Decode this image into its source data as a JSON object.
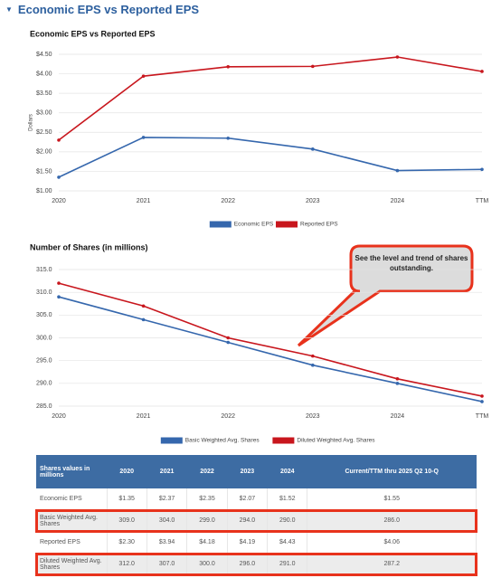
{
  "header": {
    "title": "Economic EPS vs Reported EPS"
  },
  "chart_data": [
    {
      "type": "line",
      "title": "Economic EPS vs Reported EPS",
      "y_label": "Dollars",
      "categories": [
        "2020",
        "2021",
        "2022",
        "2023",
        "2024",
        "TTM"
      ],
      "series": [
        {
          "name": "Economic EPS",
          "color": "#3567ad",
          "values": [
            1.35,
            2.37,
            2.35,
            2.07,
            1.52,
            1.55
          ]
        },
        {
          "name": "Reported EPS",
          "color": "#c8161d",
          "values": [
            2.3,
            3.94,
            4.18,
            4.19,
            4.43,
            4.06
          ]
        }
      ],
      "ylim": [
        1,
        4.5
      ],
      "yticks": [
        {
          "value": 1,
          "label": "$1.00"
        },
        {
          "value": 1.5,
          "label": "$1.50"
        },
        {
          "value": 2,
          "label": "$2.00"
        },
        {
          "value": 2.5,
          "label": "$2.50"
        },
        {
          "value": 3,
          "label": "$3.00"
        },
        {
          "value": 3.5,
          "label": "$3.50"
        },
        {
          "value": 4,
          "label": "$4.00"
        },
        {
          "value": 4.5,
          "label": "$4.50"
        }
      ],
      "grid": true
    },
    {
      "type": "line",
      "title": "Number of Shares (in millions)",
      "annotation": "See the level and trend of shares outstanding.",
      "categories": [
        "2020",
        "2021",
        "2022",
        "2023",
        "2024",
        "TTM"
      ],
      "series": [
        {
          "name": "Basic Weighted Avg. Shares",
          "color": "#3567ad",
          "values": [
            309.0,
            304.0,
            299.0,
            294.0,
            290.0,
            286.0
          ]
        },
        {
          "name": "Diluted Weighted Avg. Shares",
          "color": "#c8161d",
          "values": [
            312.0,
            307.0,
            300.0,
            296.0,
            291.0,
            287.2
          ]
        }
      ],
      "ylim": [
        285,
        315
      ],
      "yticks": [
        {
          "value": 285,
          "label": "285.0"
        },
        {
          "value": 290,
          "label": "290.0"
        },
        {
          "value": 295,
          "label": "295.0"
        },
        {
          "value": 300,
          "label": "300.0"
        },
        {
          "value": 305,
          "label": "305.0"
        },
        {
          "value": 310,
          "label": "310.0"
        },
        {
          "value": 315,
          "label": "315.0"
        }
      ],
      "grid": true
    }
  ],
  "table": {
    "header": [
      "Shares values in millions",
      "2020",
      "2021",
      "2022",
      "2023",
      "2024",
      "Current/TTM thru 2025 Q2 10-Q"
    ],
    "rows": [
      [
        "Economic EPS",
        "$1.35",
        "$2.37",
        "$2.35",
        "$2.07",
        "$1.52",
        "$1.55"
      ],
      [
        "Basic Weighted Avg. Shares",
        "309.0",
        "304.0",
        "299.0",
        "294.0",
        "290.0",
        "286.0"
      ],
      [
        "Reported EPS",
        "$2.30",
        "$3.94",
        "$4.18",
        "$4.19",
        "$4.43",
        "$4.06"
      ],
      [
        "Diluted Weighted Avg. Shares",
        "312.0",
        "307.0",
        "300.0",
        "296.0",
        "291.0",
        "287.2"
      ]
    ]
  }
}
